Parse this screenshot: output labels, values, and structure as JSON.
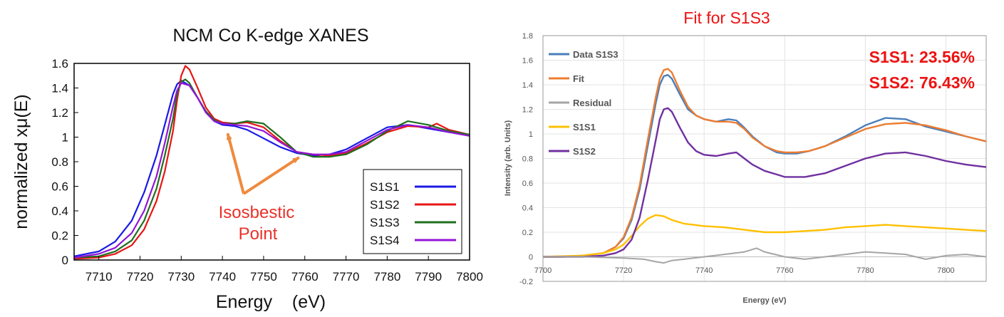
{
  "chart_data": [
    {
      "type": "line",
      "title": "NCM Co K-edge XANES",
      "xlabel": "Energy    (eV)",
      "ylabel": "normalized xμ(E)",
      "xlim": [
        7704,
        7800
      ],
      "ylim": [
        0,
        1.6
      ],
      "xticks": [
        "7710",
        "7720",
        "7730",
        "7740",
        "7750",
        "7760",
        "7770",
        "7780",
        "7790",
        "7800"
      ],
      "yticks": [
        "0",
        "0.2",
        "0.4",
        "0.6",
        "0.8",
        "1",
        "1.2",
        "1.4",
        "1.6"
      ],
      "grid": false,
      "legend_position": "bottom-right",
      "annotation": {
        "lines": [
          "Isosbestic",
          "Point"
        ],
        "color": "#e8312a",
        "arrow_color": "#ee8a3e",
        "points": [
          [
            7743,
            1.1
          ],
          [
            7760,
            0.87
          ]
        ]
      },
      "series": [
        {
          "name": "S1S1",
          "color": "#1919e6",
          "x": [
            7704,
            7710,
            7714,
            7718,
            7721,
            7724,
            7726,
            7728,
            7729,
            7730,
            7732,
            7734,
            7736,
            7738,
            7740,
            7743,
            7746,
            7750,
            7754,
            7758,
            7762,
            7766,
            7770,
            7775,
            7780,
            7785,
            7790,
            7795,
            7800
          ],
          "y": [
            0.03,
            0.07,
            0.15,
            0.32,
            0.55,
            0.85,
            1.1,
            1.35,
            1.43,
            1.46,
            1.42,
            1.32,
            1.2,
            1.13,
            1.1,
            1.09,
            1.06,
            0.99,
            0.92,
            0.87,
            0.85,
            0.86,
            0.9,
            0.99,
            1.08,
            1.1,
            1.07,
            1.04,
            1.02
          ]
        },
        {
          "name": "S1S2",
          "color": "#e81414",
          "x": [
            7704,
            7710,
            7714,
            7718,
            7721,
            7724,
            7726,
            7728,
            7729,
            7730,
            7731,
            7732,
            7734,
            7736,
            7738,
            7740,
            7743,
            7746,
            7750,
            7754,
            7758,
            7762,
            7766,
            7770,
            7775,
            7780,
            7785,
            7790,
            7792,
            7795,
            7800
          ],
          "y": [
            0.01,
            0.02,
            0.05,
            0.12,
            0.25,
            0.48,
            0.72,
            1.05,
            1.3,
            1.5,
            1.58,
            1.55,
            1.4,
            1.24,
            1.15,
            1.12,
            1.11,
            1.12,
            1.08,
            0.97,
            0.88,
            0.86,
            0.85,
            0.87,
            0.95,
            1.04,
            1.09,
            1.08,
            1.11,
            1.06,
            1.02
          ]
        },
        {
          "name": "S1S3",
          "color": "#1f6e1f",
          "x": [
            7704,
            7710,
            7714,
            7718,
            7721,
            7724,
            7726,
            7728,
            7729,
            7730,
            7731,
            7732,
            7734,
            7736,
            7738,
            7740,
            7743,
            7746,
            7750,
            7754,
            7758,
            7762,
            7766,
            7770,
            7775,
            7780,
            7785,
            7790,
            7795,
            7800
          ],
          "y": [
            0.02,
            0.03,
            0.07,
            0.16,
            0.32,
            0.58,
            0.85,
            1.15,
            1.35,
            1.45,
            1.47,
            1.44,
            1.32,
            1.21,
            1.14,
            1.11,
            1.11,
            1.13,
            1.11,
            1.0,
            0.88,
            0.84,
            0.84,
            0.86,
            0.94,
            1.05,
            1.13,
            1.1,
            1.05,
            1.02
          ]
        },
        {
          "name": "S1S4",
          "color": "#9414d6",
          "x": [
            7704,
            7710,
            7714,
            7718,
            7721,
            7724,
            7726,
            7728,
            7729,
            7730,
            7732,
            7734,
            7736,
            7738,
            7740,
            7743,
            7746,
            7750,
            7754,
            7758,
            7762,
            7766,
            7770,
            7775,
            7780,
            7785,
            7790,
            7795,
            7800
          ],
          "y": [
            0.02,
            0.05,
            0.1,
            0.22,
            0.4,
            0.68,
            0.95,
            1.25,
            1.38,
            1.44,
            1.42,
            1.32,
            1.2,
            1.13,
            1.11,
            1.1,
            1.09,
            1.05,
            0.96,
            0.88,
            0.86,
            0.86,
            0.88,
            0.97,
            1.06,
            1.1,
            1.08,
            1.04,
            1.01
          ]
        }
      ]
    },
    {
      "type": "line",
      "title": "Fit for S1S3",
      "xlabel": "Energy (eV)",
      "ylabel": "Intensity (arb. Units)",
      "xlim": [
        7700,
        7810
      ],
      "ylim": [
        -0.2,
        1.8
      ],
      "xticks": [
        "7700",
        "7720",
        "7740",
        "7760",
        "7780",
        "7800"
      ],
      "yticks": [
        "-0.2",
        "0",
        "0.2",
        "0.4",
        "0.6",
        "0.8",
        "1",
        "1.2",
        "1.4",
        "1.6",
        "1.8"
      ],
      "grid": true,
      "legend_position": "top-left",
      "annotations": [
        "S1S1: 23.56%",
        "S1S2: 76.43%"
      ],
      "annotation_color": "#ee1111",
      "series": [
        {
          "name": "Data S1S3",
          "color": "#4a7ebb",
          "x": [
            7700,
            7705,
            7710,
            7715,
            7718,
            7720,
            7722,
            7724,
            7726,
            7728,
            7729,
            7730,
            7731,
            7732,
            7734,
            7736,
            7738,
            7740,
            7743,
            7746,
            7748,
            7750,
            7752,
            7755,
            7758,
            7760,
            7763,
            7766,
            7770,
            7775,
            7780,
            7785,
            7790,
            7795,
            7800,
            7805,
            7810
          ],
          "y": [
            0.0,
            0.0,
            0.01,
            0.03,
            0.08,
            0.15,
            0.3,
            0.55,
            0.9,
            1.25,
            1.4,
            1.47,
            1.48,
            1.45,
            1.32,
            1.2,
            1.15,
            1.12,
            1.1,
            1.12,
            1.11,
            1.05,
            0.98,
            0.9,
            0.85,
            0.84,
            0.84,
            0.86,
            0.9,
            0.98,
            1.07,
            1.13,
            1.12,
            1.06,
            1.02,
            0.98,
            0.94
          ]
        },
        {
          "name": "Fit",
          "color": "#ed7d31",
          "x": [
            7700,
            7705,
            7710,
            7715,
            7718,
            7720,
            7722,
            7724,
            7726,
            7728,
            7729,
            7730,
            7731,
            7732,
            7734,
            7736,
            7738,
            7740,
            7743,
            7746,
            7748,
            7750,
            7752,
            7755,
            7758,
            7760,
            7763,
            7766,
            7770,
            7775,
            7780,
            7785,
            7790,
            7795,
            7800,
            7805,
            7810
          ],
          "y": [
            0.0,
            0.0,
            0.01,
            0.03,
            0.08,
            0.16,
            0.32,
            0.58,
            0.95,
            1.3,
            1.45,
            1.52,
            1.53,
            1.5,
            1.35,
            1.22,
            1.15,
            1.12,
            1.1,
            1.1,
            1.09,
            1.04,
            0.97,
            0.9,
            0.86,
            0.85,
            0.85,
            0.86,
            0.9,
            0.97,
            1.04,
            1.08,
            1.09,
            1.07,
            1.03,
            0.98,
            0.94
          ]
        },
        {
          "name": "Residual",
          "color": "#a5a5a5",
          "x": [
            7700,
            7710,
            7720,
            7725,
            7728,
            7730,
            7732,
            7735,
            7740,
            7745,
            7750,
            7753,
            7755,
            7760,
            7765,
            7770,
            7775,
            7780,
            7785,
            7790,
            7795,
            7800,
            7805,
            7810
          ],
          "y": [
            0.0,
            0.0,
            -0.01,
            -0.02,
            -0.04,
            -0.05,
            -0.03,
            -0.02,
            0.0,
            0.02,
            0.04,
            0.07,
            0.04,
            0.0,
            -0.02,
            0.0,
            0.02,
            0.04,
            0.03,
            0.02,
            -0.02,
            0.01,
            0.02,
            0.0
          ]
        },
        {
          "name": "S1S1",
          "color": "#ffc000",
          "x": [
            7700,
            7710,
            7715,
            7718,
            7720,
            7722,
            7724,
            7726,
            7728,
            7730,
            7732,
            7735,
            7740,
            7745,
            7750,
            7755,
            7760,
            7765,
            7770,
            7775,
            7780,
            7785,
            7790,
            7795,
            7800,
            7805,
            7810
          ],
          "y": [
            0.0,
            0.01,
            0.03,
            0.06,
            0.1,
            0.17,
            0.25,
            0.31,
            0.34,
            0.33,
            0.3,
            0.27,
            0.25,
            0.24,
            0.22,
            0.2,
            0.2,
            0.21,
            0.22,
            0.24,
            0.25,
            0.26,
            0.25,
            0.24,
            0.23,
            0.22,
            0.21
          ]
        },
        {
          "name": "S1S2",
          "color": "#7030a0",
          "x": [
            7700,
            7710,
            7715,
            7718,
            7720,
            7722,
            7724,
            7726,
            7728,
            7729,
            7730,
            7731,
            7732,
            7734,
            7736,
            7738,
            7740,
            7743,
            7746,
            7748,
            7750,
            7752,
            7755,
            7758,
            7760,
            7765,
            7770,
            7775,
            7780,
            7785,
            7790,
            7795,
            7800,
            7805,
            7810
          ],
          "y": [
            0.0,
            0.0,
            0.01,
            0.03,
            0.06,
            0.14,
            0.32,
            0.62,
            0.95,
            1.12,
            1.2,
            1.21,
            1.18,
            1.05,
            0.93,
            0.86,
            0.83,
            0.82,
            0.84,
            0.85,
            0.8,
            0.75,
            0.7,
            0.67,
            0.65,
            0.65,
            0.68,
            0.74,
            0.8,
            0.84,
            0.85,
            0.82,
            0.78,
            0.75,
            0.73
          ]
        }
      ]
    }
  ]
}
